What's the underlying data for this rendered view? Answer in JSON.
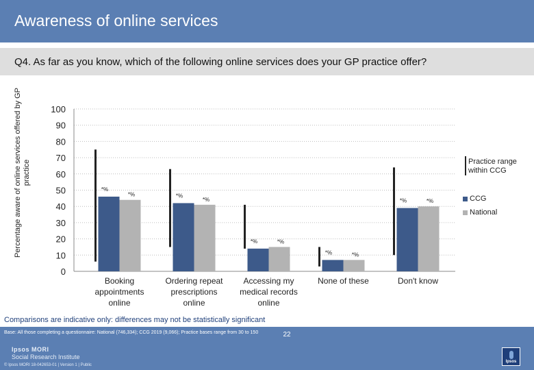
{
  "header": {
    "title": "Awareness of online services"
  },
  "question": {
    "text": "Q4. As far as you know, which of the following online services does your GP practice offer?"
  },
  "legend": {
    "range_label": "Practice range within CCG",
    "ccg_label": "CCG",
    "national_label": "National"
  },
  "note": "Comparisons are indicative only: differences may not be statistically significant",
  "footer": {
    "base_text": "Base: All those completing a questionnaire: National (746,334); CCG 2019 (9,066); Practice bases range from 30 to 150",
    "brand_top": "Ipsos MORI",
    "brand_bottom": "Social Research Institute",
    "copyright": "© Ipsos MORI     18-042653-01 | Version 1 | Public",
    "page_number": "22"
  },
  "colors": {
    "ccg": "#3d5a8a",
    "national": "#b3b3b3",
    "range": "#222222",
    "header": "#5b7fb3",
    "accent_text": "#1f3f7a"
  },
  "chart_data": {
    "type": "bar",
    "ylabel": "Percentage aware of online services offered by GP practice",
    "ylim": [
      0,
      100
    ],
    "yticks": [
      0,
      10,
      20,
      30,
      40,
      50,
      60,
      70,
      80,
      90,
      100
    ],
    "grid": true,
    "categories": [
      [
        "Booking",
        "appointments",
        "online"
      ],
      [
        "Ordering repeat",
        "prescriptions",
        "online"
      ],
      [
        "Accessing my",
        "medical records",
        "online"
      ],
      [
        "None of these"
      ],
      [
        "Don't know"
      ]
    ],
    "series": [
      {
        "name": "CCG",
        "values": [
          46,
          42,
          14,
          7,
          39
        ]
      },
      {
        "name": "National",
        "values": [
          44,
          41,
          15,
          7,
          40
        ]
      }
    ],
    "data_labels": [
      [
        "*%",
        "*%"
      ],
      [
        "*%",
        "*%"
      ],
      [
        "*%",
        "*%"
      ],
      [
        "*%",
        "*%"
      ],
      [
        "*%",
        "*%"
      ]
    ],
    "practice_range": [
      [
        6,
        75
      ],
      [
        15,
        63
      ],
      [
        14,
        41
      ],
      [
        3,
        15
      ],
      [
        10,
        64
      ]
    ],
    "legend_position": "right"
  }
}
